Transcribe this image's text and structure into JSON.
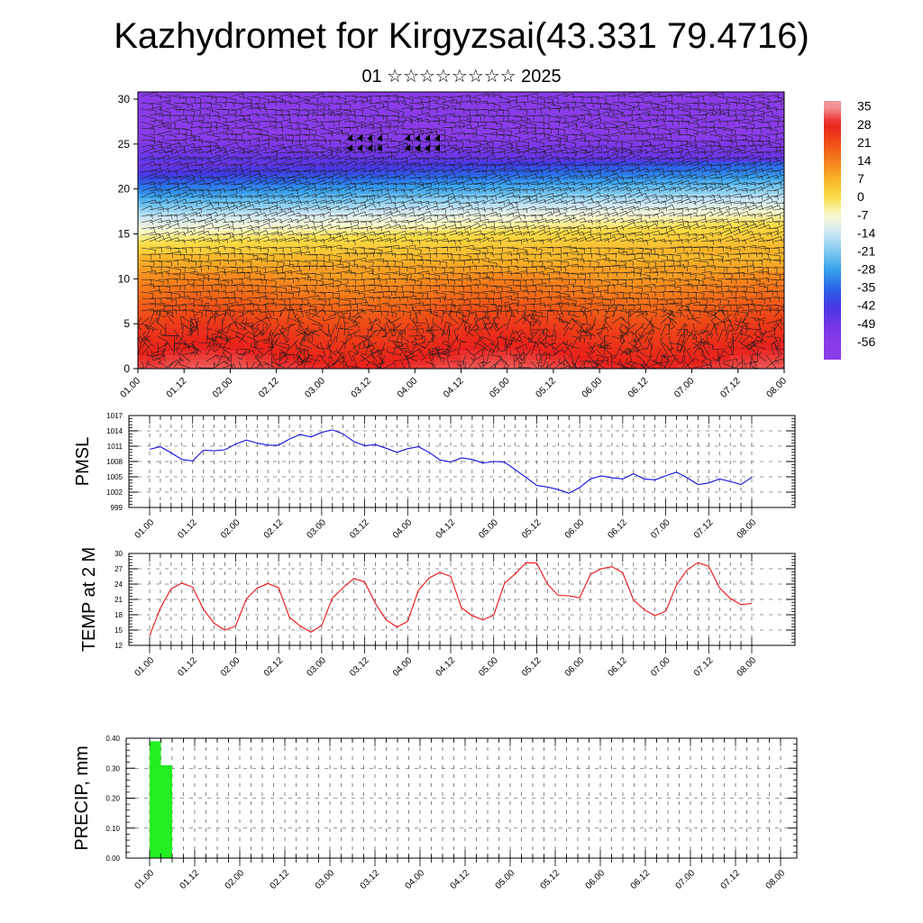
{
  "title": "Kazhydromet for Kirgyzsai(43.331 79.4716)",
  "subtitle": "01 ☆☆☆☆☆☆☆☆ 2025",
  "time_ticks": [
    "01.00",
    "01.12",
    "02.00",
    "02.12",
    "03.00",
    "03.12",
    "04.00",
    "04.12",
    "05.00",
    "05.12",
    "06.00",
    "06.12",
    "07.00",
    "07.12",
    "08.00"
  ],
  "chart_data": [
    {
      "type": "heatmap",
      "name": "cross-section",
      "xlabel": "",
      "ylabel": "",
      "x_ticks": [
        "01.00",
        "01.12",
        "02.00",
        "02.12",
        "03.00",
        "03.12",
        "04.00",
        "04.12",
        "05.00",
        "05.12",
        "06.00",
        "06.12",
        "07.00",
        "07.12",
        "08.00"
      ],
      "y_ticks": [
        0,
        5,
        10,
        15,
        20,
        25,
        30
      ],
      "ylim": [
        0,
        30.8
      ],
      "colorbar": {
        "labels": [
          35,
          28,
          21,
          14,
          7,
          0,
          -7,
          -14,
          -21,
          -28,
          -35,
          -42,
          -49,
          -56
        ],
        "colors": [
          "#f29a9a",
          "#e8201c",
          "#ee4e18",
          "#f57e1c",
          "#f8b228",
          "#fadc46",
          "#fbfad0",
          "#cfe7f4",
          "#80cbf0",
          "#3aa2ec",
          "#2a6ae8",
          "#4338e2",
          "#6f36e6",
          "#8a3ce8"
        ]
      },
      "temperature_profile": [
        {
          "height": 0,
          "temp": 30
        },
        {
          "height": 5,
          "temp": 23
        },
        {
          "height": 10,
          "temp": 12
        },
        {
          "height": 15,
          "temp": 0
        },
        {
          "height": 18,
          "temp": -15
        },
        {
          "height": 21,
          "temp": -32
        },
        {
          "height": 24,
          "temp": -50
        },
        {
          "height": 26,
          "temp": -56
        },
        {
          "height": 28,
          "temp": -58
        },
        {
          "height": 30.8,
          "temp": -60
        }
      ],
      "vectors": "wind barbs"
    },
    {
      "type": "line",
      "name": "PMSL",
      "ylabel": "PMSL",
      "y_ticks": [
        999,
        1002,
        1005,
        1008,
        1011,
        1014,
        1017
      ],
      "ylim": [
        999,
        1017
      ],
      "color": "#1010dd",
      "x": [
        0,
        0.125,
        0.25,
        0.375,
        0.5,
        0.625,
        0.75,
        0.875,
        1,
        1.125,
        1.25,
        1.375,
        1.5,
        1.625,
        1.75,
        1.875,
        2,
        2.125,
        2.25,
        2.375,
        2.5,
        2.625,
        2.75,
        2.875,
        3,
        3.125,
        3.25,
        3.375,
        3.5,
        3.625,
        3.75,
        3.875,
        4,
        4.125,
        4.25,
        4.375,
        4.5,
        4.625,
        4.75,
        4.875,
        5,
        5.125,
        5.25,
        5.375,
        5.5,
        5.625,
        5.75,
        5.875,
        6,
        6.125,
        6.25,
        6.375,
        6.5,
        6.625,
        6.75,
        6.875,
        7
      ],
      "values": [
        1010.4,
        1010.9,
        1009.7,
        1008.4,
        1008.1,
        1010.2,
        1010.1,
        1010.3,
        1011.4,
        1012.2,
        1011.6,
        1011.2,
        1011.2,
        1012.4,
        1013.3,
        1012.8,
        1013.7,
        1014.2,
        1013.4,
        1011.9,
        1011.1,
        1011.3,
        1010.6,
        1009.8,
        1010.5,
        1010.9,
        1009.8,
        1008.3,
        1007.9,
        1008.7,
        1008.4,
        1007.7,
        1008.0,
        1007.9,
        1006.4,
        1004.9,
        1003.3,
        1003.0,
        1002.5,
        1001.8,
        1002.9,
        1004.6,
        1005.2,
        1004.8,
        1004.6,
        1005.6,
        1004.6,
        1004.4,
        1005.2,
        1005.9,
        1004.8,
        1003.5,
        1003.8,
        1004.6,
        1004.1,
        1003.5,
        1004.9
      ]
    },
    {
      "type": "line",
      "name": "TEMP at 2 M",
      "ylabel": "TEMP at 2 M",
      "y_ticks": [
        12,
        15,
        18,
        21,
        24,
        27,
        30
      ],
      "ylim": [
        12,
        30
      ],
      "color": "#ee1010",
      "x": [
        0,
        0.125,
        0.25,
        0.375,
        0.5,
        0.625,
        0.75,
        0.875,
        1,
        1.125,
        1.25,
        1.375,
        1.5,
        1.625,
        1.75,
        1.875,
        2,
        2.125,
        2.25,
        2.375,
        2.5,
        2.625,
        2.75,
        2.875,
        3,
        3.125,
        3.25,
        3.375,
        3.5,
        3.625,
        3.75,
        3.875,
        4,
        4.125,
        4.25,
        4.375,
        4.5,
        4.625,
        4.75,
        4.875,
        5,
        5.125,
        5.25,
        5.375,
        5.5,
        5.625,
        5.75,
        5.875,
        6,
        6.125,
        6.25,
        6.375,
        6.5,
        6.625,
        6.75,
        6.875,
        7
      ],
      "values": [
        13.9,
        19.3,
        23.1,
        24.2,
        23.4,
        19.1,
        16.3,
        15.0,
        15.8,
        21.1,
        23.2,
        24.1,
        23.3,
        17.5,
        15.8,
        14.6,
        15.9,
        21.3,
        23.3,
        25.1,
        24.4,
        20.2,
        17.0,
        15.6,
        16.7,
        22.8,
        25.2,
        26.3,
        25.5,
        19.4,
        17.8,
        17.0,
        17.9,
        24.1,
        26.0,
        28.2,
        28.1,
        24.0,
        21.8,
        21.7,
        21.3,
        25.9,
        27.0,
        27.4,
        26.2,
        20.9,
        19.0,
        17.8,
        18.7,
        23.8,
        26.8,
        28.2,
        27.5,
        23.3,
        21.2,
        20.0,
        20.2
      ]
    },
    {
      "type": "bar",
      "name": "PRECIP, mm",
      "ylabel": "PRECIP, mm",
      "y_ticks": [
        "0.00",
        "0.10",
        "0.20",
        "0.30",
        "0.40"
      ],
      "ylim": [
        0,
        0.4
      ],
      "color": "#22ee22",
      "x": [
        0,
        0.125,
        0.25,
        0.375,
        0.5,
        0.625,
        0.75,
        0.875,
        1,
        1.125,
        1.25,
        1.375,
        1.5,
        1.625,
        1.75,
        1.875,
        2,
        2.125,
        2.25,
        2.375,
        2.5,
        2.625,
        2.75,
        2.875,
        3,
        3.125,
        3.25,
        3.375,
        3.5,
        3.625,
        3.75,
        3.875,
        4,
        4.125,
        4.25,
        4.375,
        4.5,
        4.625,
        4.75,
        4.875,
        5,
        5.125,
        5.25,
        5.375,
        5.5,
        5.625,
        5.75,
        5.875,
        6,
        6.125,
        6.25,
        6.375,
        6.5,
        6.625,
        6.75,
        6.875,
        7
      ],
      "values": [
        0.39,
        0.31,
        0,
        0,
        0,
        0,
        0,
        0,
        0,
        0,
        0,
        0,
        0,
        0,
        0,
        0,
        0,
        0,
        0,
        0,
        0,
        0,
        0,
        0,
        0,
        0,
        0,
        0,
        0,
        0,
        0,
        0,
        0,
        0,
        0,
        0,
        0,
        0,
        0,
        0,
        0,
        0,
        0,
        0,
        0,
        0,
        0,
        0,
        0,
        0,
        0,
        0,
        0,
        0,
        0,
        0,
        0
      ]
    }
  ]
}
